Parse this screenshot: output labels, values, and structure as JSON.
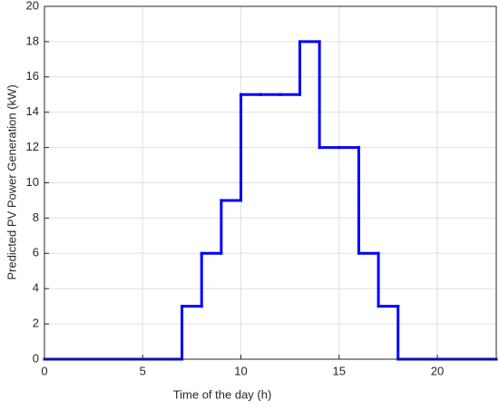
{
  "chart_data": {
    "type": "line",
    "step": "post",
    "xlabel": "Time of the day (h)",
    "ylabel": "Predicted PV Power Generation (kW)",
    "x": [
      0,
      1,
      2,
      3,
      4,
      5,
      6,
      7,
      8,
      9,
      10,
      11,
      12,
      13,
      14,
      15,
      16,
      17,
      18,
      19,
      20,
      21,
      22,
      23
    ],
    "series": [
      {
        "color": "#0000ff",
        "values": [
          0,
          0,
          0,
          0,
          0,
          0,
          0,
          3,
          6,
          9,
          15,
          15,
          15,
          18,
          12,
          12,
          6,
          3,
          0,
          0,
          0,
          0,
          0,
          0
        ]
      }
    ],
    "xlim": [
      0,
      23
    ],
    "xticks": [
      0,
      5,
      10,
      15,
      20
    ],
    "ylim": [
      0,
      20
    ],
    "yticks": [
      0,
      2,
      4,
      6,
      8,
      10,
      12,
      14,
      16,
      18,
      20
    ],
    "grid": true
  }
}
